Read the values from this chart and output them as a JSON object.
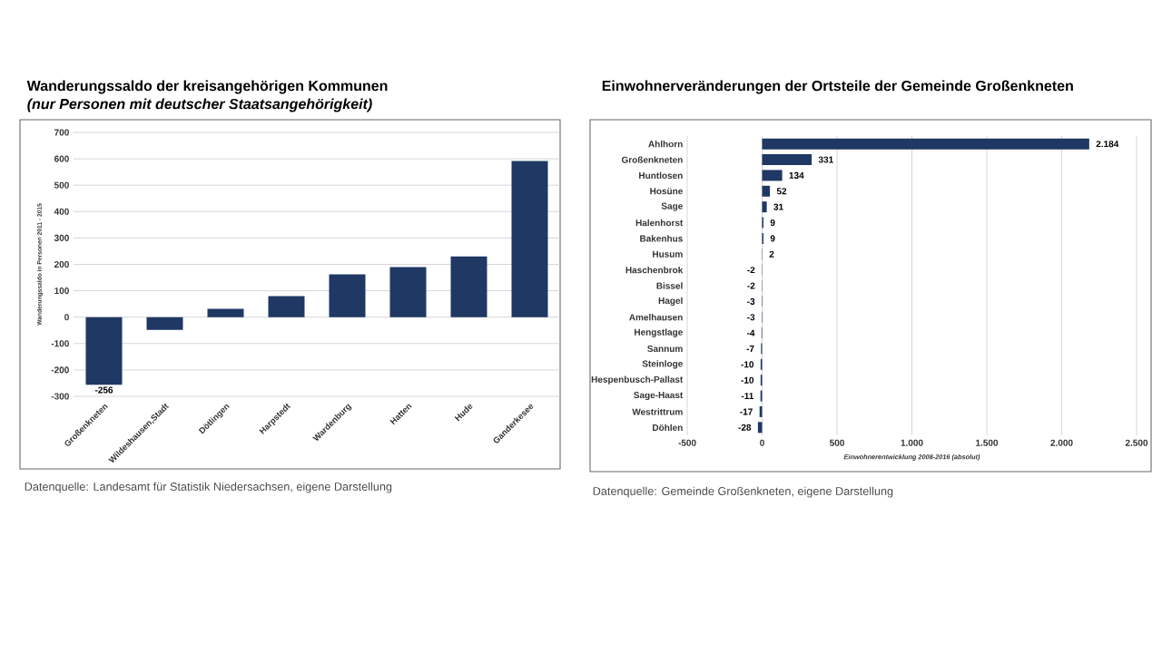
{
  "chart_data": [
    {
      "type": "bar",
      "title": "Wanderungssaldo der kreisangehörigen Kommunen",
      "subtitle": "(nur Personen mit deutscher Staatsangehörigkeit)",
      "ylabel": "Wanderungssaldo in Personen 2011 - 2015",
      "categories": [
        "Großenkneten",
        "Wildeshausen,Stadt",
        "Dötlingen",
        "Harpstedt",
        "Wardenburg",
        "Hatten",
        "Hude",
        "Ganderkesee"
      ],
      "values": [
        -256,
        -48,
        32,
        80,
        162,
        190,
        230,
        592
      ],
      "value_labels": [
        "-256",
        null,
        null,
        null,
        null,
        null,
        null,
        null
      ],
      "color": "#1f3864",
      "ylim": [
        -300,
        700
      ],
      "yticks": [
        -300,
        -200,
        -100,
        0,
        100,
        200,
        300,
        400,
        500,
        600,
        700
      ],
      "grid": "y",
      "annotations": [
        "Datenquelle: Landesamt für Statistik Niedersachsen, eigene Darstellung"
      ]
    },
    {
      "type": "bar",
      "orientation": "horizontal",
      "title": "Einwohnerveränderungen der Ortsteile  der Gemeinde Großenkneten",
      "xlabel": "Einwohnerentwicklung 2008-2016 (absolut)",
      "categories": [
        "Ahlhorn",
        "Großenkneten",
        "Huntlosen",
        "Hosüne",
        "Sage",
        "Halenhorst",
        "Bakenhus",
        "Husum",
        "Haschenbrok",
        "Bissel",
        "Hagel",
        "Amelhausen",
        "Hengstlage",
        "Sannum",
        "Steinloge",
        "Hespenbusch-Pallast",
        "Sage-Haast",
        "Westrittrum",
        "Döhlen"
      ],
      "values": [
        2184,
        331,
        134,
        52,
        31,
        9,
        9,
        2,
        -2,
        -2,
        -3,
        -3,
        -4,
        -7,
        -10,
        -10,
        -11,
        -17,
        -28
      ],
      "value_labels": [
        "2.184",
        "331",
        "134",
        "52",
        "31",
        "9",
        "9",
        "2",
        "-2",
        "-2",
        "-3",
        "-3",
        "-4",
        "-7",
        "-10",
        "-10",
        "-11",
        "-17",
        "-28"
      ],
      "color": "#1f3864",
      "xlim": [
        -500,
        2500
      ],
      "xticks": [
        {
          "value": -500,
          "label": "-500"
        },
        0,
        500,
        {
          "value": 1000,
          "label": "1.000"
        },
        {
          "value": 1500,
          "label": "1.500"
        },
        {
          "value": 2000,
          "label": "2.000"
        },
        {
          "value": 2500,
          "label": "2.500"
        }
      ],
      "grid": "x",
      "annotations": [
        "Datenquelle: Gemeinde Großenkneten, eigene Darstellung"
      ]
    }
  ]
}
